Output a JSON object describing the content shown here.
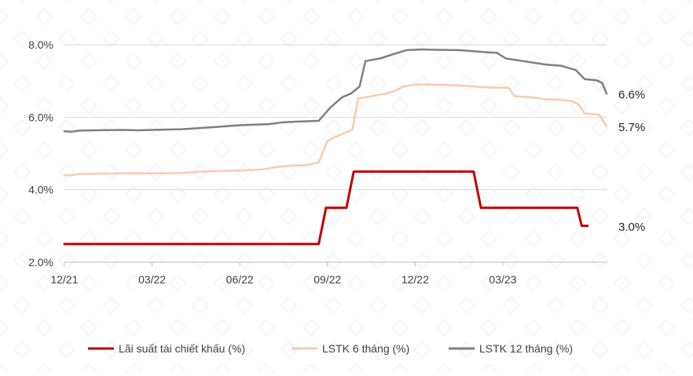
{
  "chart_data": {
    "type": "line",
    "title": "",
    "xlabel": "",
    "ylabel": "",
    "ylim": [
      2.0,
      8.0
    ],
    "yticks": [
      "2.0%",
      "4.0%",
      "6.0%",
      "8.0%"
    ],
    "xticks": [
      "12/21",
      "03/22",
      "06/22",
      "09/22",
      "12/22",
      "03/23"
    ],
    "grid": "horizontal",
    "legend_position": "bottom",
    "series": [
      {
        "name": "Lãi suất tái chiết khấu (%)",
        "color": "#C00000",
        "end_label": "3.0%",
        "points": [
          [
            0,
            2.5
          ],
          [
            8.7,
            2.5
          ],
          [
            8.95,
            3.5
          ],
          [
            9.65,
            3.5
          ],
          [
            9.9,
            4.5
          ],
          [
            13.5,
            4.5
          ],
          [
            14.0,
            4.5
          ],
          [
            14.25,
            3.5
          ],
          [
            17.55,
            3.5
          ],
          [
            17.7,
            3.0
          ],
          [
            17.9,
            3.0
          ]
        ]
      },
      {
        "name": "LSTK 6 tháng (%)",
        "color": "#F8CBAD",
        "end_label": "5.7%",
        "points": [
          [
            0,
            4.4
          ],
          [
            0.25,
            4.4
          ],
          [
            0.5,
            4.43
          ],
          [
            1,
            4.44
          ],
          [
            2,
            4.45
          ],
          [
            3,
            4.45
          ],
          [
            4,
            4.46
          ],
          [
            5,
            4.51
          ],
          [
            6,
            4.53
          ],
          [
            6.8,
            4.56
          ],
          [
            7.2,
            4.62
          ],
          [
            7.7,
            4.66
          ],
          [
            8.3,
            4.68
          ],
          [
            8.7,
            4.75
          ],
          [
            9.0,
            5.35
          ],
          [
            9.4,
            5.5
          ],
          [
            9.85,
            5.65
          ],
          [
            10.05,
            6.52
          ],
          [
            10.5,
            6.58
          ],
          [
            11.0,
            6.65
          ],
          [
            11.3,
            6.72
          ],
          [
            11.6,
            6.85
          ],
          [
            12.0,
            6.9
          ],
          [
            12.5,
            6.9
          ],
          [
            13.0,
            6.89
          ],
          [
            13.5,
            6.88
          ],
          [
            14.0,
            6.85
          ],
          [
            14.6,
            6.82
          ],
          [
            15.2,
            6.81
          ],
          [
            15.4,
            6.58
          ],
          [
            16.0,
            6.55
          ],
          [
            16.4,
            6.5
          ],
          [
            17.0,
            6.48
          ],
          [
            17.4,
            6.44
          ],
          [
            17.6,
            6.35
          ],
          [
            17.8,
            6.1
          ],
          [
            18.3,
            6.07
          ],
          [
            18.55,
            5.75
          ]
        ]
      },
      {
        "name": "LSTK 12 tháng (%)",
        "color": "#7F7F7F",
        "end_label": "6.6%",
        "points": [
          [
            0,
            5.61
          ],
          [
            0.25,
            5.6
          ],
          [
            0.5,
            5.63
          ],
          [
            1,
            5.64
          ],
          [
            2,
            5.65
          ],
          [
            2.5,
            5.64
          ],
          [
            3,
            5.65
          ],
          [
            4,
            5.67
          ],
          [
            5,
            5.72
          ],
          [
            6,
            5.78
          ],
          [
            7,
            5.81
          ],
          [
            7.5,
            5.86
          ],
          [
            8.0,
            5.88
          ],
          [
            8.7,
            5.9
          ],
          [
            9.1,
            6.27
          ],
          [
            9.5,
            6.55
          ],
          [
            9.8,
            6.65
          ],
          [
            10.1,
            6.85
          ],
          [
            10.3,
            7.55
          ],
          [
            10.8,
            7.62
          ],
          [
            11.3,
            7.75
          ],
          [
            11.7,
            7.85
          ],
          [
            12.2,
            7.87
          ],
          [
            12.8,
            7.86
          ],
          [
            13.5,
            7.85
          ],
          [
            14.0,
            7.82
          ],
          [
            14.5,
            7.79
          ],
          [
            14.8,
            7.78
          ],
          [
            15.1,
            7.62
          ],
          [
            15.6,
            7.56
          ],
          [
            16.1,
            7.5
          ],
          [
            16.5,
            7.45
          ],
          [
            17.0,
            7.42
          ],
          [
            17.5,
            7.3
          ],
          [
            17.8,
            7.05
          ],
          [
            18.2,
            7.02
          ],
          [
            18.4,
            6.95
          ],
          [
            18.55,
            6.65
          ]
        ]
      }
    ]
  }
}
